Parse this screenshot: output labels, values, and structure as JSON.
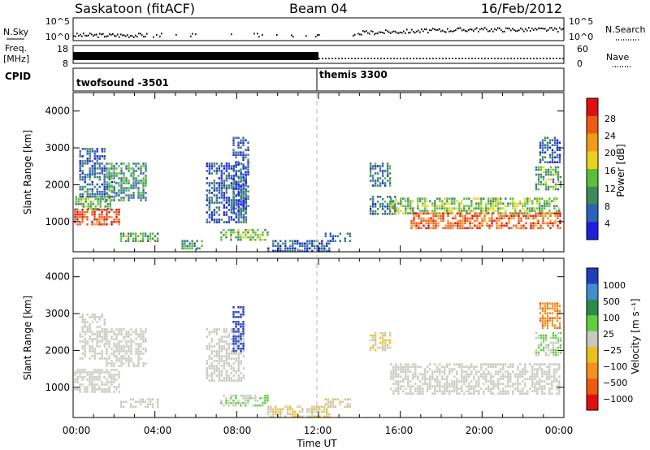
{
  "header": {
    "station": "Saskatoon (fitACF)",
    "beam": "Beam 04",
    "date": "16/Feb/2012"
  },
  "nsky_panel": {
    "left_label": "N.Sky",
    "right_label": "N.Search",
    "left_ticks": [
      "10^5",
      "10^0"
    ],
    "right_ticks": [
      "10^5",
      "10^0"
    ]
  },
  "freq_panel": {
    "left_label_line1": "Freq.",
    "left_label_line2": "[MHz]",
    "right_label": "Nave",
    "left_ticks": [
      "18",
      "8"
    ],
    "right_ticks": [
      "60",
      "0"
    ]
  },
  "cpid_panel": {
    "label": "CPID",
    "programs": [
      {
        "name": "twofsound",
        "id": "-3501",
        "start": 0,
        "end": 12
      },
      {
        "name": "themis",
        "id": "3300",
        "start": 12,
        "end": 24
      }
    ],
    "program_labels": [
      "twofsound -3501",
      "themis 3300"
    ]
  },
  "power_panel": {
    "ylabel": "Slant Range [km]",
    "colorbar_label": "Power [dB]",
    "colorbar_ticks": [
      "28",
      "24",
      "20",
      "16",
      "12",
      "8",
      "4"
    ],
    "colors": [
      "#1f1fe0",
      "#2d62b8",
      "#3d8a5a",
      "#5bbf3a",
      "#e8d21c",
      "#f29a1a",
      "#ee5a14",
      "#e01010"
    ]
  },
  "velocity_panel": {
    "ylabel": "Slant Range [km]",
    "colorbar_label": "Velocity [m s⁻¹]",
    "colorbar_ticks": [
      "1000",
      "500",
      "100",
      "25",
      "−25",
      "−100",
      "−500",
      "−1000"
    ],
    "colors": [
      "#1f3fbf",
      "#3f8fcf",
      "#2f8a4a",
      "#5fcf3f",
      "#c8c8c0",
      "#e8c020",
      "#f29020",
      "#ef5a10",
      "#e01010"
    ]
  },
  "y_ticks": [
    "4000",
    "3000",
    "2000",
    "1000"
  ],
  "x_ticks": [
    "00:00",
    "04:00",
    "08:00",
    "12:00",
    "16:00",
    "20:00",
    "00:00"
  ],
  "xlabel": "Time UT",
  "chart_data": [
    {
      "type": "heatmap",
      "title": "",
      "variable": "Power",
      "unit": "dB",
      "xlabel": "",
      "ylabel": "Slant Range [km]",
      "xlim": [
        0,
        24
      ],
      "ylim": [
        180,
        4500
      ],
      "clim": [
        0,
        32
      ],
      "cells": [
        {
          "t0": 0.05,
          "t1": 2.2,
          "r0": 900,
          "r1": 1350,
          "v": 28
        },
        {
          "t0": 0.1,
          "t1": 1.8,
          "r0": 1350,
          "r1": 1700,
          "v": 14
        },
        {
          "t0": 0.3,
          "t1": 2.0,
          "r0": 1700,
          "r1": 2300,
          "v": 8
        },
        {
          "t0": 0.3,
          "t1": 1.5,
          "r0": 2300,
          "r1": 3000,
          "v": 6
        },
        {
          "t0": 1.6,
          "t1": 3.6,
          "r0": 1600,
          "r1": 2600,
          "v": 10
        },
        {
          "t0": 2.3,
          "t1": 4.2,
          "r0": 500,
          "r1": 700,
          "v": 12
        },
        {
          "t0": 5.3,
          "t1": 6.3,
          "r0": 300,
          "r1": 500,
          "v": 10
        },
        {
          "t0": 6.5,
          "t1": 8.5,
          "r0": 1000,
          "r1": 2600,
          "v": 6
        },
        {
          "t0": 7.2,
          "t1": 9.5,
          "r0": 500,
          "r1": 800,
          "v": 14
        },
        {
          "t0": 7.8,
          "t1": 8.6,
          "r0": 1200,
          "r1": 3300,
          "v": 6
        },
        {
          "t0": 9.5,
          "t1": 12.5,
          "r0": 200,
          "r1": 500,
          "v": 6
        },
        {
          "t0": 12.3,
          "t1": 13.5,
          "r0": 500,
          "r1": 700,
          "v": 8
        },
        {
          "t0": 14.5,
          "t1": 15.8,
          "r0": 1200,
          "r1": 1700,
          "v": 8
        },
        {
          "t0": 14.5,
          "t1": 15.5,
          "r0": 2000,
          "r1": 2600,
          "v": 8
        },
        {
          "t0": 15.5,
          "t1": 23.8,
          "r0": 1200,
          "r1": 1650,
          "v": 14
        },
        {
          "t0": 16.5,
          "t1": 23.8,
          "r0": 850,
          "r1": 1250,
          "v": 26
        },
        {
          "t0": 22.6,
          "t1": 23.8,
          "r0": 1900,
          "r1": 2500,
          "v": 12
        },
        {
          "t0": 22.8,
          "t1": 23.8,
          "r0": 2600,
          "r1": 3300,
          "v": 6
        }
      ]
    },
    {
      "type": "heatmap",
      "title": "",
      "variable": "Velocity",
      "unit": "m s^-1",
      "xlabel": "Time UT",
      "ylabel": "Slant Range [km]",
      "xlim": [
        0,
        24
      ],
      "ylim": [
        180,
        4500
      ],
      "clim": [
        -1000,
        1000
      ],
      "cells": [
        {
          "t0": 0.05,
          "t1": 2.2,
          "r0": 900,
          "r1": 1500,
          "v": 0
        },
        {
          "t0": 0.3,
          "t1": 1.5,
          "r0": 1800,
          "r1": 3000,
          "v": 0
        },
        {
          "t0": 1.6,
          "t1": 3.6,
          "r0": 1600,
          "r1": 2600,
          "v": 0
        },
        {
          "t0": 2.3,
          "t1": 4.2,
          "r0": 500,
          "r1": 700,
          "v": 0
        },
        {
          "t0": 6.5,
          "t1": 8.3,
          "r0": 1200,
          "r1": 2600,
          "v": 50
        },
        {
          "t0": 7.2,
          "t1": 9.5,
          "r0": 500,
          "r1": 800,
          "v": 100
        },
        {
          "t0": 7.8,
          "t1": 8.3,
          "r0": 2000,
          "r1": 3200,
          "v": 1000
        },
        {
          "t0": 9.5,
          "t1": 12.5,
          "r0": 200,
          "r1": 500,
          "v": -100
        },
        {
          "t0": 12.3,
          "t1": 13.5,
          "r0": 500,
          "r1": 700,
          "v": -100
        },
        {
          "t0": 14.5,
          "t1": 15.5,
          "r0": 2000,
          "r1": 2500,
          "v": -100
        },
        {
          "t0": 15.5,
          "t1": 23.8,
          "r0": 850,
          "r1": 1650,
          "v": 0
        },
        {
          "t0": 22.6,
          "t1": 23.8,
          "r0": 1900,
          "r1": 2500,
          "v": 100
        },
        {
          "t0": 22.8,
          "t1": 23.8,
          "r0": 2600,
          "r1": 3300,
          "v": -500
        }
      ]
    }
  ]
}
